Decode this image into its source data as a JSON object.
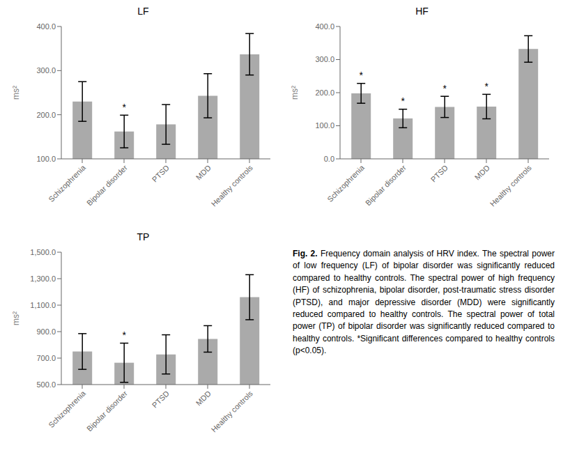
{
  "chart_data": [
    {
      "type": "bar",
      "title": "LF",
      "categories": [
        "Schizophrenia",
        "Bipolar disorder",
        "PTSD",
        "MDD",
        "Healthy controls"
      ],
      "values": [
        230,
        162,
        178,
        243,
        337
      ],
      "errors": [
        45,
        37,
        45,
        50,
        47
      ],
      "color": "#aaaaaa",
      "y_label": "ms²",
      "ylim": [
        100.0,
        400.0
      ],
      "yticks": [
        {
          "value": 100,
          "label": "100.0"
        },
        {
          "value": 200,
          "label": "200.0"
        },
        {
          "value": 300,
          "label": "300.0"
        },
        {
          "value": 400,
          "label": "400.0"
        }
      ],
      "grid": false,
      "annotations": [
        {
          "category": "Bipolar disorder",
          "text": "*"
        }
      ]
    },
    {
      "type": "bar",
      "title": "HF",
      "categories": [
        "Schizophrenia",
        "Bipolar disorder",
        "PTSD",
        "MDD",
        "Healthy controls"
      ],
      "values": [
        198,
        122,
        157,
        158,
        332
      ],
      "errors": [
        30,
        28,
        32,
        37,
        40
      ],
      "color": "#aaaaaa",
      "y_label": "ms²",
      "ylim": [
        0.0,
        400.0
      ],
      "yticks": [
        {
          "value": 0,
          "label": "0.0"
        },
        {
          "value": 100,
          "label": "100.0"
        },
        {
          "value": 200,
          "label": "200.0"
        },
        {
          "value": 300,
          "label": "300.0"
        },
        {
          "value": 400,
          "label": "400.0"
        }
      ],
      "grid": false,
      "annotations": [
        {
          "category": "Schizophrenia",
          "text": "*"
        },
        {
          "category": "Bipolar disorder",
          "text": "*"
        },
        {
          "category": "PTSD",
          "text": "*"
        },
        {
          "category": "MDD",
          "text": "*"
        }
      ]
    },
    {
      "type": "bar",
      "title": "TP",
      "categories": [
        "Schizophrenia",
        "Bipolar disorder",
        "PTSD",
        "MDD",
        "Healthy controls"
      ],
      "values": [
        750,
        665,
        728,
        845,
        1160
      ],
      "errors": [
        135,
        148,
        148,
        100,
        170
      ],
      "color": "#aaaaaa",
      "y_label": "ms²",
      "ylim": [
        500.0,
        1500.0
      ],
      "yticks": [
        {
          "value": 500,
          "label": "500.0"
        },
        {
          "value": 700,
          "label": "700.0"
        },
        {
          "value": 900,
          "label": "900.0"
        },
        {
          "value": 1100,
          "label": "1,100.0"
        },
        {
          "value": 1300,
          "label": "1,300.0"
        },
        {
          "value": 1500,
          "label": "1,500.0"
        }
      ],
      "grid": false,
      "annotations": [
        {
          "category": "Bipolar disorder",
          "text": "*"
        }
      ]
    }
  ],
  "caption_bold": "Fig. 2.",
  "caption": "Frequency domain analysis of HRV index. The spectral power of low frequency (LF) of bipolar disorder was significantly reduced compared to healthy controls. The spectral power of high frequency (HF) of schizophrenia, bipolar disorder, post-traumatic stress disorder (PTSD), and major depressive disorder (MDD) were significantly reduced compared to healthy controls. The spectral power of total power (TP) of bipolar disorder was significantly reduced compared to healthy controls. *Significant differences compared to healthy controls (p<0.05)."
}
